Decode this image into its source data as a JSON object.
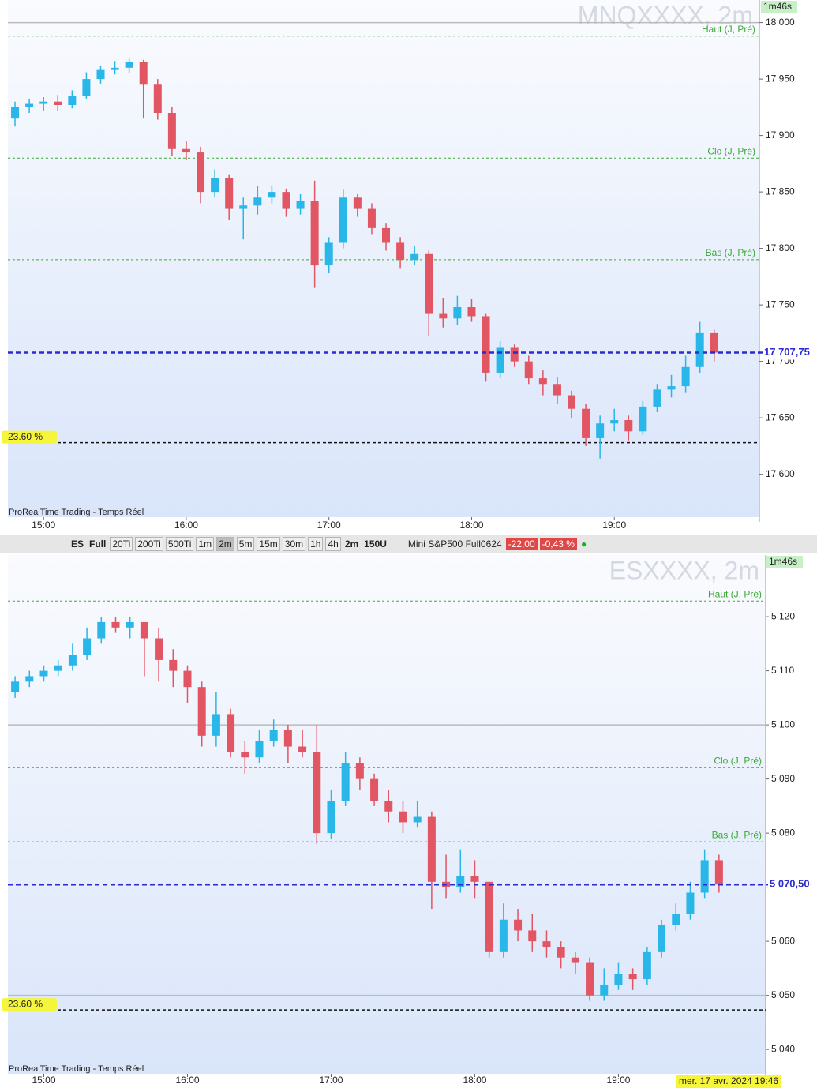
{
  "chart_data": [
    {
      "type": "candlestick",
      "title": "MNQXXXX, 2m",
      "timer": "1m46s",
      "footer": "ProRealTime Trading - Temps Réel",
      "xlim": [
        885,
        1201
      ],
      "ylim": [
        17562,
        18020
      ],
      "xticks": [
        {
          "value": 900,
          "label": "15:00"
        },
        {
          "value": 960,
          "label": "16:00"
        },
        {
          "value": 1020,
          "label": "17:00"
        },
        {
          "value": 1080,
          "label": "18:00"
        },
        {
          "value": 1140,
          "label": "19:00"
        }
      ],
      "yticks": [
        {
          "value": 17600,
          "label": "17 600"
        },
        {
          "value": 17650,
          "label": "17 650"
        },
        {
          "value": 17700,
          "label": "17 700"
        },
        {
          "value": 17750,
          "label": "17 750"
        },
        {
          "value": 17800,
          "label": "17 800"
        },
        {
          "value": 17850,
          "label": "17 850"
        },
        {
          "value": 17900,
          "label": "17 900"
        },
        {
          "value": 17950,
          "label": "17 950"
        },
        {
          "value": 18000,
          "label": "18 000"
        }
      ],
      "up_color": "#29b6e8",
      "down_color": "#e25563",
      "hlines": [
        18000
      ],
      "levels": [
        {
          "name": "Haut (J, Pré)",
          "value": 17988
        },
        {
          "name": "Clo (J, Pré)",
          "value": 17880
        },
        {
          "name": "Bas (J, Pré)",
          "value": 17790
        }
      ],
      "fib": {
        "name": "23.60 %",
        "value": 17628
      },
      "last": {
        "value": 17707.75,
        "label": "17 707,75"
      },
      "x": [
        888,
        894,
        900,
        906,
        912,
        918,
        924,
        930,
        936,
        942,
        948,
        954,
        960,
        966,
        972,
        978,
        984,
        990,
        996,
        1002,
        1008,
        1014,
        1020,
        1026,
        1032,
        1038,
        1044,
        1050,
        1056,
        1062,
        1068,
        1074,
        1080,
        1086,
        1092,
        1098,
        1104,
        1110,
        1116,
        1122,
        1128,
        1134,
        1140,
        1146,
        1152,
        1158,
        1164,
        1170,
        1176,
        1182
      ],
      "ohlc": [
        [
          17915,
          17930,
          17908,
          17925
        ],
        [
          17925,
          17932,
          17920,
          17928
        ],
        [
          17928,
          17934,
          17922,
          17930
        ],
        [
          17930,
          17936,
          17922,
          17927
        ],
        [
          17927,
          17940,
          17924,
          17935
        ],
        [
          17935,
          17956,
          17932,
          17950
        ],
        [
          17950,
          17962,
          17946,
          17958
        ],
        [
          17958,
          17966,
          17954,
          17960
        ],
        [
          17960,
          17968,
          17955,
          17965
        ],
        [
          17965,
          17967,
          17915,
          17945
        ],
        [
          17945,
          17950,
          17914,
          17920
        ],
        [
          17920,
          17925,
          17882,
          17888
        ],
        [
          17888,
          17895,
          17878,
          17885
        ],
        [
          17885,
          17890,
          17840,
          17850
        ],
        [
          17850,
          17870,
          17845,
          17862
        ],
        [
          17862,
          17865,
          17825,
          17835
        ],
        [
          17835,
          17845,
          17808,
          17838
        ],
        [
          17838,
          17855,
          17830,
          17845
        ],
        [
          17845,
          17856,
          17840,
          17850
        ],
        [
          17850,
          17853,
          17828,
          17835
        ],
        [
          17835,
          17848,
          17830,
          17842
        ],
        [
          17842,
          17860,
          17765,
          17785
        ],
        [
          17785,
          17810,
          17778,
          17805
        ],
        [
          17805,
          17852,
          17800,
          17845
        ],
        [
          17845,
          17848,
          17828,
          17835
        ],
        [
          17835,
          17840,
          17812,
          17818
        ],
        [
          17818,
          17822,
          17798,
          17805
        ],
        [
          17805,
          17810,
          17782,
          17790
        ],
        [
          17790,
          17802,
          17785,
          17795
        ],
        [
          17795,
          17798,
          17722,
          17742
        ],
        [
          17742,
          17756,
          17730,
          17738
        ],
        [
          17738,
          17758,
          17732,
          17748
        ],
        [
          17748,
          17755,
          17735,
          17740
        ],
        [
          17740,
          17742,
          17682,
          17690
        ],
        [
          17690,
          17718,
          17685,
          17712
        ],
        [
          17712,
          17715,
          17695,
          17700
        ],
        [
          17700,
          17705,
          17680,
          17685
        ],
        [
          17685,
          17692,
          17670,
          17680
        ],
        [
          17680,
          17686,
          17662,
          17670
        ],
        [
          17670,
          17674,
          17650,
          17658
        ],
        [
          17658,
          17662,
          17625,
          17632
        ],
        [
          17632,
          17652,
          17614,
          17645
        ],
        [
          17645,
          17658,
          17638,
          17648
        ],
        [
          17648,
          17652,
          17630,
          17638
        ],
        [
          17638,
          17665,
          17635,
          17660
        ],
        [
          17660,
          17680,
          17655,
          17675
        ],
        [
          17675,
          17688,
          17668,
          17678
        ],
        [
          17678,
          17705,
          17672,
          17695
        ],
        [
          17695,
          17735,
          17690,
          17725
        ],
        [
          17725,
          17728,
          17700,
          17707.75
        ]
      ]
    },
    {
      "type": "candlestick",
      "title": "ESXXXX, 2m",
      "timer": "1m46s",
      "footer": "ProRealTime Trading - Temps Réel",
      "xlim": [
        885,
        1201.5
      ],
      "ylim": [
        5035.5,
        5131.4
      ],
      "xticks": [
        {
          "value": 900,
          "label": "15:00"
        },
        {
          "value": 960,
          "label": "16:00"
        },
        {
          "value": 1020,
          "label": "17:00"
        },
        {
          "value": 1080,
          "label": "18:00"
        },
        {
          "value": 1140,
          "label": "19:00"
        }
      ],
      "yticks": [
        {
          "value": 5040,
          "label": "5 040"
        },
        {
          "value": 5050,
          "label": "5 050"
        },
        {
          "value": 5060,
          "label": "5 060"
        },
        {
          "value": 5070,
          "label": "5 070"
        },
        {
          "value": 5080,
          "label": "5 080"
        },
        {
          "value": 5090,
          "label": "5 090"
        },
        {
          "value": 5100,
          "label": "5 100"
        },
        {
          "value": 5110,
          "label": "5 110"
        },
        {
          "value": 5120,
          "label": "5 120"
        }
      ],
      "up_color": "#29b6e8",
      "down_color": "#e25563",
      "hlines": [
        5100,
        5050
      ],
      "levels": [
        {
          "name": "Haut (J, Pré)",
          "value": 5122.9
        },
        {
          "name": "Clo (J, Pré)",
          "value": 5092.1
        },
        {
          "name": "Bas (J, Pré)",
          "value": 5078.4
        }
      ],
      "fib": {
        "name": "23.60 %",
        "value": 5047.3
      },
      "last": {
        "value": 5070.5,
        "label": "5 070,50"
      },
      "x": [
        888,
        894,
        900,
        906,
        912,
        918,
        924,
        930,
        936,
        942,
        948,
        954,
        960,
        966,
        972,
        978,
        984,
        990,
        996,
        1002,
        1008,
        1014,
        1020,
        1026,
        1032,
        1038,
        1044,
        1050,
        1056,
        1062,
        1068,
        1074,
        1080,
        1086,
        1092,
        1098,
        1104,
        1110,
        1116,
        1122,
        1128,
        1134,
        1140,
        1146,
        1152,
        1158,
        1164,
        1170,
        1176,
        1182
      ],
      "ohlc": [
        [
          5106,
          5109,
          5105,
          5108
        ],
        [
          5108,
          5110,
          5107,
          5109
        ],
        [
          5109,
          5111,
          5108,
          5110
        ],
        [
          5110,
          5112,
          5109,
          5111
        ],
        [
          5111,
          5115,
          5110,
          5113
        ],
        [
          5113,
          5118,
          5112,
          5116
        ],
        [
          5116,
          5120,
          5115,
          5119
        ],
        [
          5119,
          5120,
          5117,
          5118
        ],
        [
          5118,
          5120,
          5116,
          5119
        ],
        [
          5119,
          5119,
          5109,
          5116
        ],
        [
          5116,
          5118,
          5108,
          5112
        ],
        [
          5112,
          5114,
          5107,
          5110
        ],
        [
          5110,
          5111,
          5104,
          5107
        ],
        [
          5107,
          5108,
          5096,
          5098
        ],
        [
          5098,
          5106,
          5096,
          5102
        ],
        [
          5102,
          5103,
          5094,
          5095
        ],
        [
          5095,
          5097,
          5091,
          5094
        ],
        [
          5094,
          5099,
          5093,
          5097
        ],
        [
          5097,
          5101,
          5096,
          5099
        ],
        [
          5099,
          5100,
          5093,
          5096
        ],
        [
          5096,
          5099,
          5094,
          5095
        ],
        [
          5095,
          5100,
          5078,
          5080
        ],
        [
          5080,
          5088,
          5079,
          5086
        ],
        [
          5086,
          5095,
          5085,
          5093
        ],
        [
          5093,
          5094,
          5088,
          5090
        ],
        [
          5090,
          5091,
          5085,
          5086
        ],
        [
          5086,
          5088,
          5082,
          5084
        ],
        [
          5084,
          5086,
          5080,
          5082
        ],
        [
          5082,
          5086,
          5081,
          5083
        ],
        [
          5083,
          5084,
          5066,
          5071
        ],
        [
          5071,
          5076,
          5068,
          5070
        ],
        [
          5070,
          5077,
          5069,
          5072
        ],
        [
          5072,
          5075,
          5068,
          5071
        ],
        [
          5071,
          5071,
          5057,
          5058
        ],
        [
          5058,
          5067,
          5057,
          5064
        ],
        [
          5064,
          5066,
          5060,
          5062
        ],
        [
          5062,
          5065,
          5058,
          5060
        ],
        [
          5060,
          5062,
          5057,
          5059
        ],
        [
          5059,
          5060,
          5055,
          5057
        ],
        [
          5057,
          5058,
          5054,
          5056
        ],
        [
          5056,
          5057,
          5049,
          5050
        ],
        [
          5050,
          5055,
          5049,
          5052
        ],
        [
          5052,
          5056,
          5051,
          5054
        ],
        [
          5054,
          5055,
          5051,
          5053
        ],
        [
          5053,
          5059,
          5052,
          5058
        ],
        [
          5058,
          5064,
          5057,
          5063
        ],
        [
          5063,
          5067,
          5062,
          5065
        ],
        [
          5065,
          5071,
          5064,
          5069
        ],
        [
          5069,
          5077,
          5068,
          5075
        ],
        [
          5075,
          5076,
          5069,
          5070.5
        ]
      ]
    }
  ],
  "toolbar": {
    "symbol": "ES",
    "mode": "Full",
    "buttons": [
      "20Ti",
      "200Ti",
      "500Ti",
      "1m",
      "2m",
      "5m",
      "15m",
      "30m",
      "1h",
      "4h"
    ],
    "active_button": "2m",
    "interval": "2m",
    "units": "150U",
    "instrument": "Mini S&P500 Full0624",
    "change": "-22,00",
    "change_pct": "-0,43 %"
  },
  "date_label": "mer. 17 avr. 2024 19:46"
}
